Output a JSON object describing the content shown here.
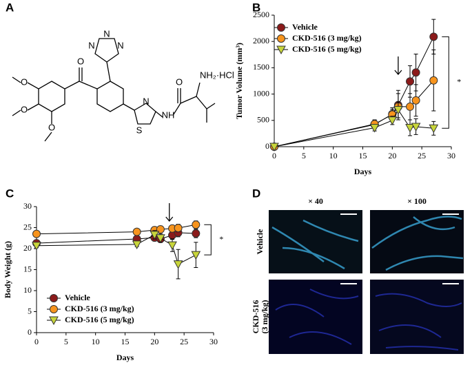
{
  "panels": [
    "A",
    "B",
    "C",
    "D"
  ],
  "structure": {
    "atoms": [
      "O",
      "O",
      "O",
      "O",
      "N",
      "N",
      "N",
      "N",
      "S",
      "NH",
      "O",
      "NH₂·HCl"
    ]
  },
  "microscopy": {
    "columns": [
      "× 40",
      "× 100"
    ],
    "rows": [
      "Vehicle",
      "CKD-516",
      "(3 mg/kg)"
    ]
  },
  "chart_data": [
    {
      "type": "line",
      "xlabel": "Days",
      "ylabel": "Tumor Volume (mm³)",
      "x": [
        0,
        17,
        20,
        21,
        23,
        24,
        27
      ],
      "series": [
        {
          "name": "Vehicle",
          "color": "#8b1a1a",
          "marker": "circle",
          "values": [
            0,
            420,
            620,
            790,
            1240,
            1410,
            2090
          ],
          "errors": [
            0,
            80,
            120,
            280,
            300,
            350,
            330
          ]
        },
        {
          "name": "CKD-516 (3 mg/kg)",
          "color": "#f7941d",
          "marker": "circle",
          "values": [
            0,
            430,
            610,
            760,
            760,
            880,
            1260
          ],
          "errors": [
            0,
            80,
            100,
            250,
            250,
            300,
            580
          ]
        },
        {
          "name": "CKD-516 (5 mg/kg)",
          "color": "#c8d53b",
          "marker": "triangle-down",
          "values": [
            0,
            360,
            500,
            700,
            360,
            380,
            350
          ],
          "errors": [
            0,
            60,
            80,
            150,
            150,
            150,
            130
          ]
        }
      ],
      "xlim": [
        0,
        30
      ],
      "xticks": [
        0,
        5,
        10,
        15,
        20,
        25,
        30
      ],
      "ylim": [
        0,
        2500
      ],
      "yticks": [
        0,
        500,
        1000,
        1500,
        2000,
        2500
      ],
      "arrow_x": 21,
      "annotation": "*",
      "legend": "upper-left"
    },
    {
      "type": "line",
      "xlabel": "Days",
      "ylabel": "Body Weight (g)",
      "x": [
        0,
        17,
        20,
        21,
        23,
        24,
        27
      ],
      "series": [
        {
          "name": "Vehicle",
          "color": "#8b1a1a",
          "marker": "circle",
          "values": [
            21.3,
            22.3,
            22.6,
            22.3,
            23.2,
            23.8,
            23.6
          ],
          "errors": [
            0.5,
            0.7,
            0.8,
            0.8,
            1,
            1,
            1
          ]
        },
        {
          "name": "CKD-516 (3 mg/kg)",
          "color": "#f7941d",
          "marker": "circle",
          "values": [
            23.5,
            24,
            24.4,
            24.6,
            24.8,
            24.9,
            25.7
          ],
          "errors": [
            0.5,
            0.7,
            0.8,
            0.8,
            0.8,
            0.9,
            0.9
          ]
        },
        {
          "name": "CKD-516 (5 mg/kg)",
          "color": "#c8d53b",
          "marker": "triangle-down",
          "values": [
            20.7,
            21,
            23.3,
            22.5,
            20.8,
            16.3,
            18.5
          ],
          "errors": [
            0.5,
            0.5,
            1,
            1,
            1.5,
            3.5,
            3
          ]
        }
      ],
      "xlim": [
        0,
        30
      ],
      "xticks": [
        0,
        5,
        10,
        15,
        20,
        25,
        30
      ],
      "ylim": [
        0,
        30
      ],
      "yticks": [
        0,
        5,
        10,
        15,
        20,
        25,
        30
      ],
      "arrow_x": 22.5,
      "annotation": "*",
      "legend": "lower-left"
    }
  ]
}
